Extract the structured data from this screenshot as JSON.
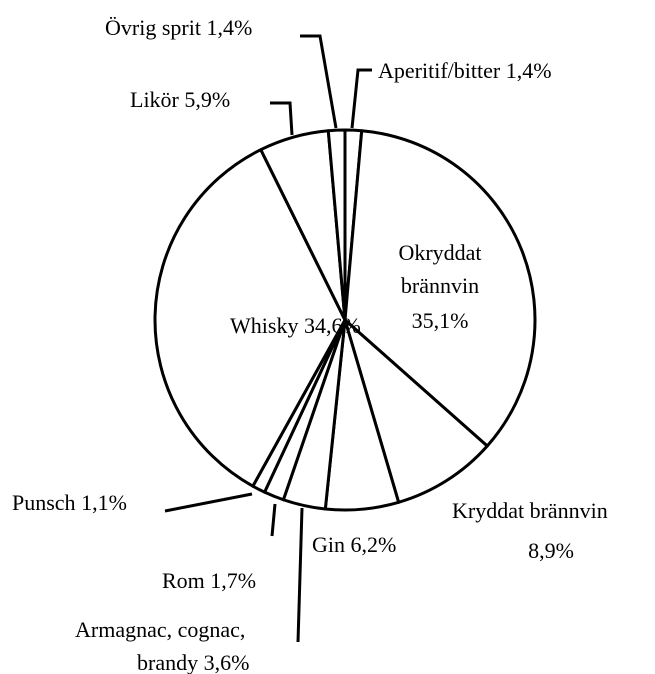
{
  "chart_data": {
    "type": "pie",
    "categories": [
      "Aperitif/bitter",
      "Okryddat brännvin",
      "Kryddat brännvin",
      "Gin",
      "Armagnac, cognac, brandy",
      "Rom",
      "Punsch",
      "Whisky",
      "Likör",
      "Övrig sprit"
    ],
    "values": [
      1.4,
      35.1,
      8.9,
      6.2,
      3.6,
      1.7,
      1.1,
      34.6,
      5.9,
      1.4
    ],
    "value_labels": [
      "1,4%",
      "35,1%",
      "8,9%",
      "6,2%",
      "3,6%",
      "1,7%",
      "1,1%",
      "34,6%",
      "5,9%",
      "1,4%"
    ],
    "color": "#ffffff"
  }
}
